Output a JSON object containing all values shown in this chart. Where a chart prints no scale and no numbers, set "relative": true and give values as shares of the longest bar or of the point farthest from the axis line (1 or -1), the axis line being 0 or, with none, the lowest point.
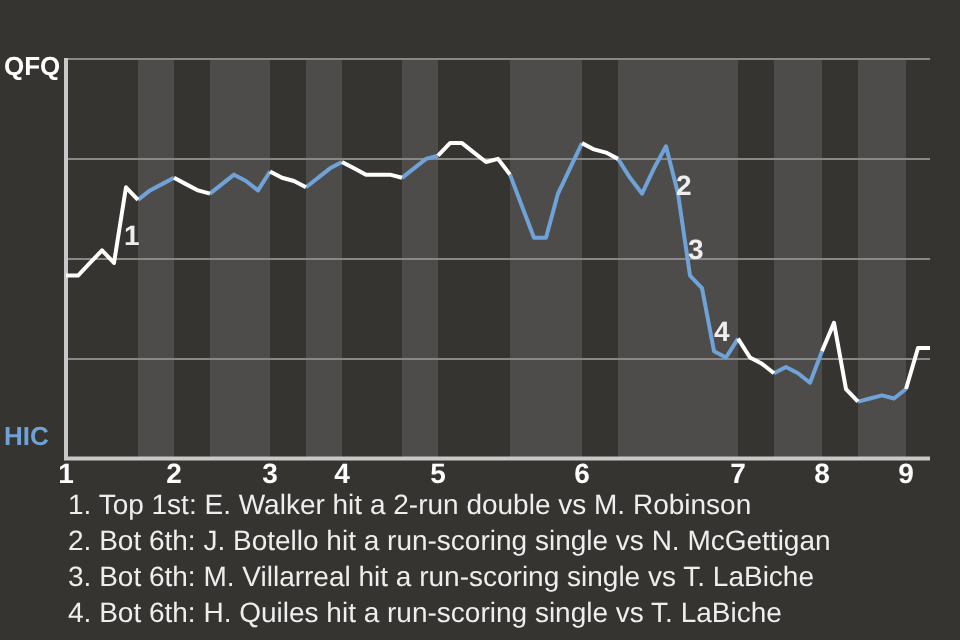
{
  "chart_data": {
    "type": "line",
    "categories": [
      "1",
      null,
      null,
      null,
      null,
      null,
      null,
      null,
      null,
      "2",
      null,
      null,
      null,
      null,
      null,
      null,
      null,
      "3",
      null,
      null,
      null,
      null,
      null,
      "4",
      null,
      null,
      null,
      null,
      null,
      null,
      null,
      "5",
      null,
      null,
      null,
      null,
      null,
      null,
      null,
      null,
      null,
      null,
      null,
      "6",
      null,
      null,
      null,
      null,
      null,
      null,
      null,
      null,
      null,
      null,
      null,
      null,
      "7",
      null,
      null,
      null,
      null,
      null,
      null,
      "8",
      null,
      null,
      null,
      null,
      null,
      null,
      "9",
      null,
      null
    ],
    "relative": true,
    "series": [
      {
        "color": "#ffffff",
        "values": [
          0.58,
          0.58,
          0.62,
          0.66,
          0.62,
          0.86,
          0.82,
          null,
          null,
          0.89,
          0.87,
          0.85,
          0.84,
          null,
          null,
          null,
          null,
          0.91,
          0.89,
          0.88,
          0.86,
          null,
          null,
          0.94,
          0.92,
          0.9,
          0.9,
          0.9,
          0.89,
          null,
          null,
          0.96,
          1,
          1,
          0.97,
          0.94,
          0.95,
          0.9,
          null,
          null,
          null,
          null,
          null,
          1,
          0.98,
          0.97,
          0.95,
          null,
          null,
          null,
          null,
          null,
          null,
          null,
          null,
          null,
          0.38,
          0.32,
          0.3,
          0.27,
          null,
          null,
          null,
          0.34,
          0.43,
          0.22,
          0.18,
          null,
          null,
          null,
          0.22,
          0.35,
          0.35
        ]
      },
      {
        "color": "#6fa3d8",
        "values": [
          null,
          null,
          null,
          null,
          null,
          null,
          0.82,
          0.85,
          0.87,
          0.89,
          null,
          null,
          0.84,
          0.87,
          0.9,
          0.88,
          0.85,
          0.91,
          null,
          null,
          0.86,
          0.89,
          0.92,
          0.94,
          null,
          null,
          null,
          null,
          0.89,
          0.92,
          0.95,
          0.96,
          null,
          null,
          null,
          null,
          null,
          0.9,
          0.8,
          0.7,
          0.7,
          0.84,
          0.92,
          1,
          null,
          null,
          0.95,
          0.89,
          0.84,
          0.92,
          0.99,
          0.84,
          0.58,
          0.54,
          0.34,
          0.32,
          0.38,
          null,
          null,
          0.27,
          0.29,
          0.27,
          0.24,
          0.34,
          null,
          null,
          0.18,
          0.19,
          0.2,
          0.19,
          0.22,
          null,
          null
        ]
      }
    ],
    "annotations": [
      "QFQ",
      "HIC",
      "1",
      "2",
      "3",
      "4",
      "1. Top 1st: E. Walker hit a 2-run double vs M. Robinson",
      "2. Bot 6th: J. Botello hit a run-scoring single vs N. McGettigan",
      "3. Bot 6th: M. Villarreal hit a run-scoring single vs T. LaBiche",
      "4. Bot 6th: H. Quiles hit a run-scoring single vs T. LaBiche"
    ],
    "grid": "y",
    "legend": false,
    "marker": "none",
    "line_style": "solid"
  }
}
